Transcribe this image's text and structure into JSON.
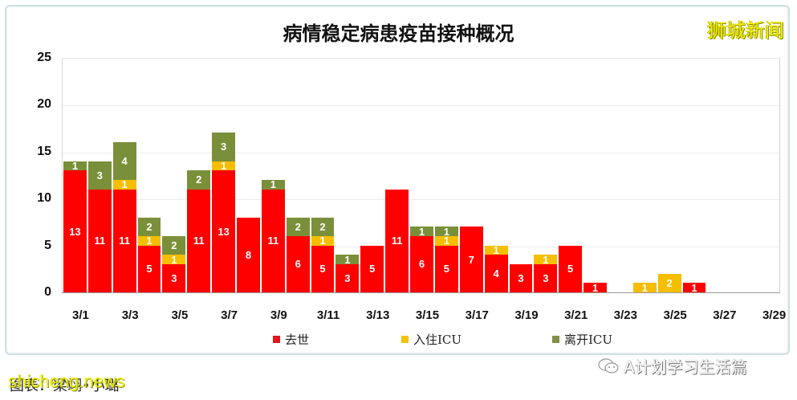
{
  "chart_data": {
    "type": "bar",
    "stacked": true,
    "title": "病情稳定病患疫苗接种概况",
    "xlabel": "",
    "ylabel": "",
    "ylim": [
      0,
      25
    ],
    "yticks": [
      0,
      5,
      10,
      15,
      20,
      25
    ],
    "x_tick_labels": [
      "3/1",
      "3/3",
      "3/5",
      "3/7",
      "3/9",
      "3/11",
      "3/13",
      "3/15",
      "3/17",
      "3/19",
      "3/21",
      "3/23",
      "3/25",
      "3/27",
      "3/29"
    ],
    "categories": [
      "3/1",
      "3/2",
      "3/3",
      "3/4",
      "3/5",
      "3/6",
      "3/7",
      "3/8",
      "3/9",
      "3/10",
      "3/11",
      "3/12",
      "3/13",
      "3/14",
      "3/15",
      "3/16",
      "3/17",
      "3/18",
      "3/19",
      "3/20",
      "3/21",
      "3/22",
      "3/23",
      "3/24",
      "3/25",
      "3/26",
      "3/27",
      "3/28",
      "3/29"
    ],
    "series": [
      {
        "name": "去世",
        "color": "#ff0000",
        "values": [
          13,
          11,
          11,
          5,
          3,
          11,
          13,
          8,
          11,
          6,
          5,
          3,
          5,
          11,
          6,
          5,
          7,
          4,
          3,
          3,
          5,
          1,
          0,
          0,
          0,
          1,
          0,
          0,
          0
        ]
      },
      {
        "name": "入住ICU",
        "color": "#f5be00",
        "values": [
          0,
          0,
          1,
          1,
          1,
          0,
          1,
          0,
          0,
          0,
          1,
          0,
          0,
          0,
          0,
          1,
          0,
          1,
          0,
          1,
          0,
          0,
          0,
          1,
          2,
          0,
          0,
          0,
          0
        ]
      },
      {
        "name": "离开ICU",
        "color": "#7a8f3a",
        "values": [
          1,
          3,
          4,
          2,
          2,
          2,
          3,
          0,
          1,
          2,
          2,
          1,
          0,
          0,
          1,
          1,
          0,
          0,
          0,
          0,
          0,
          0,
          0,
          0,
          0,
          0,
          0,
          0,
          0
        ]
      }
    ],
    "grid": true,
    "legend_position": "bottom"
  },
  "header": {
    "title": "病情稳定病患疫苗接种概况",
    "brand_watermark": "狮城新闻"
  },
  "legend": {
    "items": [
      {
        "label": "去世",
        "color": "#e8141a"
      },
      {
        "label": "入住ICU",
        "color": "#f2c300"
      },
      {
        "label": "离开ICU",
        "color": "#7f9046"
      }
    ]
  },
  "footer": {
    "caption": "图表：梁翊•小璐",
    "watermark_site": "shicheng.news",
    "wechat_account": "A计划学习生活篇"
  }
}
